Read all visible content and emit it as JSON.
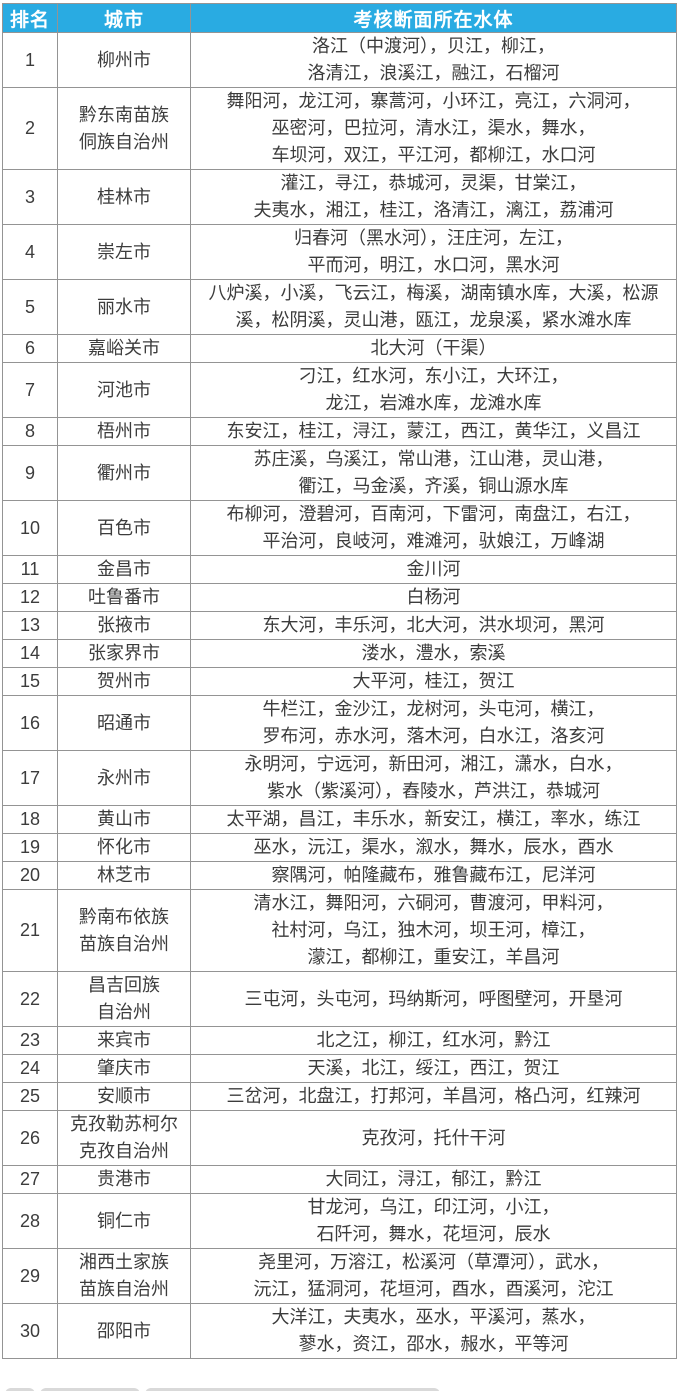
{
  "colors": {
    "header_bg": "#29ABE2",
    "header_text": "#FFFFFF",
    "border": "#949494",
    "body_text": "#3C3C3C"
  },
  "table": {
    "columns": [
      {
        "key": "rank",
        "label": "排名"
      },
      {
        "key": "city",
        "label": "城市"
      },
      {
        "key": "water",
        "label": "考核断面所在水体"
      }
    ],
    "rows": [
      {
        "rank": "1",
        "city": "柳州市",
        "water": "洛江（中渡河），贝江，柳江，\n洛清江，浪溪江，融江，石榴河"
      },
      {
        "rank": "2",
        "city": "黔东南苗族\n侗族自治州",
        "water": "舞阳河，龙江河，寨蒿河，小环江，亮江，六洞河，\n巫密河，巴拉河，清水江，渠水，舞水，\n车坝河，双江，平江河，都柳江，水口河"
      },
      {
        "rank": "3",
        "city": "桂林市",
        "water": "灌江，寻江，恭城河，灵渠，甘棠江，\n夫夷水，湘江，桂江，洛清江，漓江，荔浦河"
      },
      {
        "rank": "4",
        "city": "崇左市",
        "water": "归春河（黑水河），汪庄河，左江，\n平而河，明江，水口河，黑水河"
      },
      {
        "rank": "5",
        "city": "丽水市",
        "water": "八炉溪，小溪，飞云江，梅溪，湖南镇水库，大溪，松源溪，松阴溪，灵山港，瓯江，龙泉溪，紧水滩水库"
      },
      {
        "rank": "6",
        "city": "嘉峪关市",
        "water": "北大河（干渠）"
      },
      {
        "rank": "7",
        "city": "河池市",
        "water": "刁江，红水河，东小江，大环江，\n龙江，岩滩水库，龙滩水库"
      },
      {
        "rank": "8",
        "city": "梧州市",
        "water": "东安江，桂江，浔江，蒙江，西江，黄华江，义昌江"
      },
      {
        "rank": "9",
        "city": "衢州市",
        "water": "苏庄溪，乌溪江，常山港，江山港，灵山港，\n衢江，马金溪，齐溪，铜山源水库"
      },
      {
        "rank": "10",
        "city": "百色市",
        "water": "布柳河，澄碧河，百南河，下雷河，南盘江，右江，\n平治河，良岐河，难滩河，驮娘江，万峰湖"
      },
      {
        "rank": "11",
        "city": "金昌市",
        "water": "金川河"
      },
      {
        "rank": "12",
        "city": "吐鲁番市",
        "water": "白杨河"
      },
      {
        "rank": "13",
        "city": "张掖市",
        "water": "东大河，丰乐河，北大河，洪水坝河，黑河"
      },
      {
        "rank": "14",
        "city": "张家界市",
        "water": "溇水，澧水，索溪"
      },
      {
        "rank": "15",
        "city": "贺州市",
        "water": "大平河，桂江，贺江"
      },
      {
        "rank": "16",
        "city": "昭通市",
        "water": "牛栏江，金沙江，龙树河，头屯河，横江，\n罗布河，赤水河，落木河，白水江，洛亥河"
      },
      {
        "rank": "17",
        "city": "永州市",
        "water": "永明河，宁远河，新田河，湘江，潇水，白水，\n紫水（紫溪河），舂陵水，芦洪江，恭城河"
      },
      {
        "rank": "18",
        "city": "黄山市",
        "water": "太平湖，昌江，丰乐水，新安江，横江，率水，练江"
      },
      {
        "rank": "19",
        "city": "怀化市",
        "water": "巫水，沅江，渠水，溆水，舞水，辰水，酉水"
      },
      {
        "rank": "20",
        "city": "林芝市",
        "water": "察隅河，帕隆藏布，雅鲁藏布江，尼洋河"
      },
      {
        "rank": "21",
        "city": "黔南布依族\n苗族自治州",
        "water": "清水江，舞阳河，六硐河，曹渡河，甲料河，\n社村河，乌江，独木河，坝王河，樟江，\n濛江，都柳江，重安江，羊昌河"
      },
      {
        "rank": "22",
        "city": "昌吉回族\n自治州",
        "water": "三屯河，头屯河，玛纳斯河，呼图壁河，开垦河"
      },
      {
        "rank": "23",
        "city": "来宾市",
        "water": "北之江，柳江，红水河，黔江"
      },
      {
        "rank": "24",
        "city": "肇庆市",
        "water": "天溪，北江，绥江，西江，贺江"
      },
      {
        "rank": "25",
        "city": "安顺市",
        "water": "三岔河，北盘江，打邦河，羊昌河，格凸河，红辣河"
      },
      {
        "rank": "26",
        "city": "克孜勒苏柯尔\n克孜自治州",
        "water": "克孜河，托什干河"
      },
      {
        "rank": "27",
        "city": "贵港市",
        "water": "大同江，浔江，郁江，黔江"
      },
      {
        "rank": "28",
        "city": "铜仁市",
        "water": "甘龙河，乌江，印江河，小江，\n石阡河，舞水，花垣河，辰水"
      },
      {
        "rank": "29",
        "city": "湘西土家族\n苗族自治州",
        "water": "尧里河，万溶江，松溪河（草潭河），武水，\n沅江，猛洞河，花垣河，酉水，酉溪河，沱江"
      },
      {
        "rank": "30",
        "city": "邵阳市",
        "water": "大洋江，夫夷水，巫水，平溪河，蒸水，\n蓼水，资江，邵水，赧水，平等河"
      }
    ]
  }
}
